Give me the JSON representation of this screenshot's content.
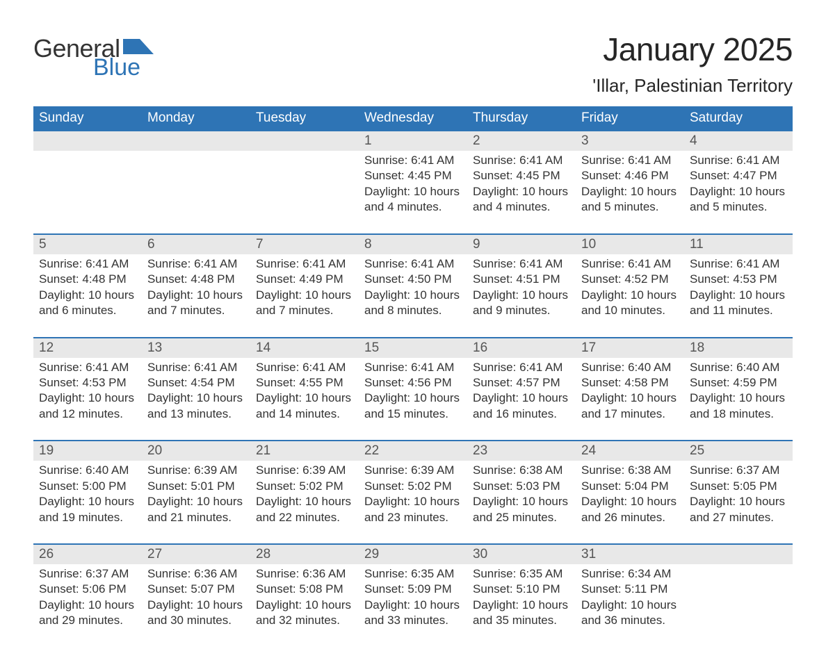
{
  "logo": {
    "text_general": "General",
    "text_blue": "Blue",
    "flag_color": "#2e74b5"
  },
  "header": {
    "title": "January 2025",
    "location": "'Illar, Palestinian Territory"
  },
  "colors": {
    "header_bar_bg": "#2e74b5",
    "header_bar_text": "#ffffff",
    "daynum_bg": "#e8e8e8",
    "daynum_text": "#555555",
    "body_text": "#333333",
    "week_divider": "#2e74b5",
    "page_bg": "#ffffff"
  },
  "typography": {
    "title_fontsize_pt": 34,
    "subtitle_fontsize_pt": 19,
    "dow_fontsize_pt": 14,
    "daynum_fontsize_pt": 14,
    "body_fontsize_pt": 13,
    "font_family": "Arial"
  },
  "layout": {
    "columns": 7,
    "weeks": 5,
    "first_day_of_week": "Sunday"
  },
  "days_of_week": [
    "Sunday",
    "Monday",
    "Tuesday",
    "Wednesday",
    "Thursday",
    "Friday",
    "Saturday"
  ],
  "weeks": [
    [
      {
        "day": "",
        "sunrise": "",
        "sunset": "",
        "daylight": ""
      },
      {
        "day": "",
        "sunrise": "",
        "sunset": "",
        "daylight": ""
      },
      {
        "day": "",
        "sunrise": "",
        "sunset": "",
        "daylight": ""
      },
      {
        "day": "1",
        "sunrise": "Sunrise: 6:41 AM",
        "sunset": "Sunset: 4:45 PM",
        "daylight": "Daylight: 10 hours and 4 minutes."
      },
      {
        "day": "2",
        "sunrise": "Sunrise: 6:41 AM",
        "sunset": "Sunset: 4:45 PM",
        "daylight": "Daylight: 10 hours and 4 minutes."
      },
      {
        "day": "3",
        "sunrise": "Sunrise: 6:41 AM",
        "sunset": "Sunset: 4:46 PM",
        "daylight": "Daylight: 10 hours and 5 minutes."
      },
      {
        "day": "4",
        "sunrise": "Sunrise: 6:41 AM",
        "sunset": "Sunset: 4:47 PM",
        "daylight": "Daylight: 10 hours and 5 minutes."
      }
    ],
    [
      {
        "day": "5",
        "sunrise": "Sunrise: 6:41 AM",
        "sunset": "Sunset: 4:48 PM",
        "daylight": "Daylight: 10 hours and 6 minutes."
      },
      {
        "day": "6",
        "sunrise": "Sunrise: 6:41 AM",
        "sunset": "Sunset: 4:48 PM",
        "daylight": "Daylight: 10 hours and 7 minutes."
      },
      {
        "day": "7",
        "sunrise": "Sunrise: 6:41 AM",
        "sunset": "Sunset: 4:49 PM",
        "daylight": "Daylight: 10 hours and 7 minutes."
      },
      {
        "day": "8",
        "sunrise": "Sunrise: 6:41 AM",
        "sunset": "Sunset: 4:50 PM",
        "daylight": "Daylight: 10 hours and 8 minutes."
      },
      {
        "day": "9",
        "sunrise": "Sunrise: 6:41 AM",
        "sunset": "Sunset: 4:51 PM",
        "daylight": "Daylight: 10 hours and 9 minutes."
      },
      {
        "day": "10",
        "sunrise": "Sunrise: 6:41 AM",
        "sunset": "Sunset: 4:52 PM",
        "daylight": "Daylight: 10 hours and 10 minutes."
      },
      {
        "day": "11",
        "sunrise": "Sunrise: 6:41 AM",
        "sunset": "Sunset: 4:53 PM",
        "daylight": "Daylight: 10 hours and 11 minutes."
      }
    ],
    [
      {
        "day": "12",
        "sunrise": "Sunrise: 6:41 AM",
        "sunset": "Sunset: 4:53 PM",
        "daylight": "Daylight: 10 hours and 12 minutes."
      },
      {
        "day": "13",
        "sunrise": "Sunrise: 6:41 AM",
        "sunset": "Sunset: 4:54 PM",
        "daylight": "Daylight: 10 hours and 13 minutes."
      },
      {
        "day": "14",
        "sunrise": "Sunrise: 6:41 AM",
        "sunset": "Sunset: 4:55 PM",
        "daylight": "Daylight: 10 hours and 14 minutes."
      },
      {
        "day": "15",
        "sunrise": "Sunrise: 6:41 AM",
        "sunset": "Sunset: 4:56 PM",
        "daylight": "Daylight: 10 hours and 15 minutes."
      },
      {
        "day": "16",
        "sunrise": "Sunrise: 6:41 AM",
        "sunset": "Sunset: 4:57 PM",
        "daylight": "Daylight: 10 hours and 16 minutes."
      },
      {
        "day": "17",
        "sunrise": "Sunrise: 6:40 AM",
        "sunset": "Sunset: 4:58 PM",
        "daylight": "Daylight: 10 hours and 17 minutes."
      },
      {
        "day": "18",
        "sunrise": "Sunrise: 6:40 AM",
        "sunset": "Sunset: 4:59 PM",
        "daylight": "Daylight: 10 hours and 18 minutes."
      }
    ],
    [
      {
        "day": "19",
        "sunrise": "Sunrise: 6:40 AM",
        "sunset": "Sunset: 5:00 PM",
        "daylight": "Daylight: 10 hours and 19 minutes."
      },
      {
        "day": "20",
        "sunrise": "Sunrise: 6:39 AM",
        "sunset": "Sunset: 5:01 PM",
        "daylight": "Daylight: 10 hours and 21 minutes."
      },
      {
        "day": "21",
        "sunrise": "Sunrise: 6:39 AM",
        "sunset": "Sunset: 5:02 PM",
        "daylight": "Daylight: 10 hours and 22 minutes."
      },
      {
        "day": "22",
        "sunrise": "Sunrise: 6:39 AM",
        "sunset": "Sunset: 5:02 PM",
        "daylight": "Daylight: 10 hours and 23 minutes."
      },
      {
        "day": "23",
        "sunrise": "Sunrise: 6:38 AM",
        "sunset": "Sunset: 5:03 PM",
        "daylight": "Daylight: 10 hours and 25 minutes."
      },
      {
        "day": "24",
        "sunrise": "Sunrise: 6:38 AM",
        "sunset": "Sunset: 5:04 PM",
        "daylight": "Daylight: 10 hours and 26 minutes."
      },
      {
        "day": "25",
        "sunrise": "Sunrise: 6:37 AM",
        "sunset": "Sunset: 5:05 PM",
        "daylight": "Daylight: 10 hours and 27 minutes."
      }
    ],
    [
      {
        "day": "26",
        "sunrise": "Sunrise: 6:37 AM",
        "sunset": "Sunset: 5:06 PM",
        "daylight": "Daylight: 10 hours and 29 minutes."
      },
      {
        "day": "27",
        "sunrise": "Sunrise: 6:36 AM",
        "sunset": "Sunset: 5:07 PM",
        "daylight": "Daylight: 10 hours and 30 minutes."
      },
      {
        "day": "28",
        "sunrise": "Sunrise: 6:36 AM",
        "sunset": "Sunset: 5:08 PM",
        "daylight": "Daylight: 10 hours and 32 minutes."
      },
      {
        "day": "29",
        "sunrise": "Sunrise: 6:35 AM",
        "sunset": "Sunset: 5:09 PM",
        "daylight": "Daylight: 10 hours and 33 minutes."
      },
      {
        "day": "30",
        "sunrise": "Sunrise: 6:35 AM",
        "sunset": "Sunset: 5:10 PM",
        "daylight": "Daylight: 10 hours and 35 minutes."
      },
      {
        "day": "31",
        "sunrise": "Sunrise: 6:34 AM",
        "sunset": "Sunset: 5:11 PM",
        "daylight": "Daylight: 10 hours and 36 minutes."
      },
      {
        "day": "",
        "sunrise": "",
        "sunset": "",
        "daylight": ""
      }
    ]
  ]
}
